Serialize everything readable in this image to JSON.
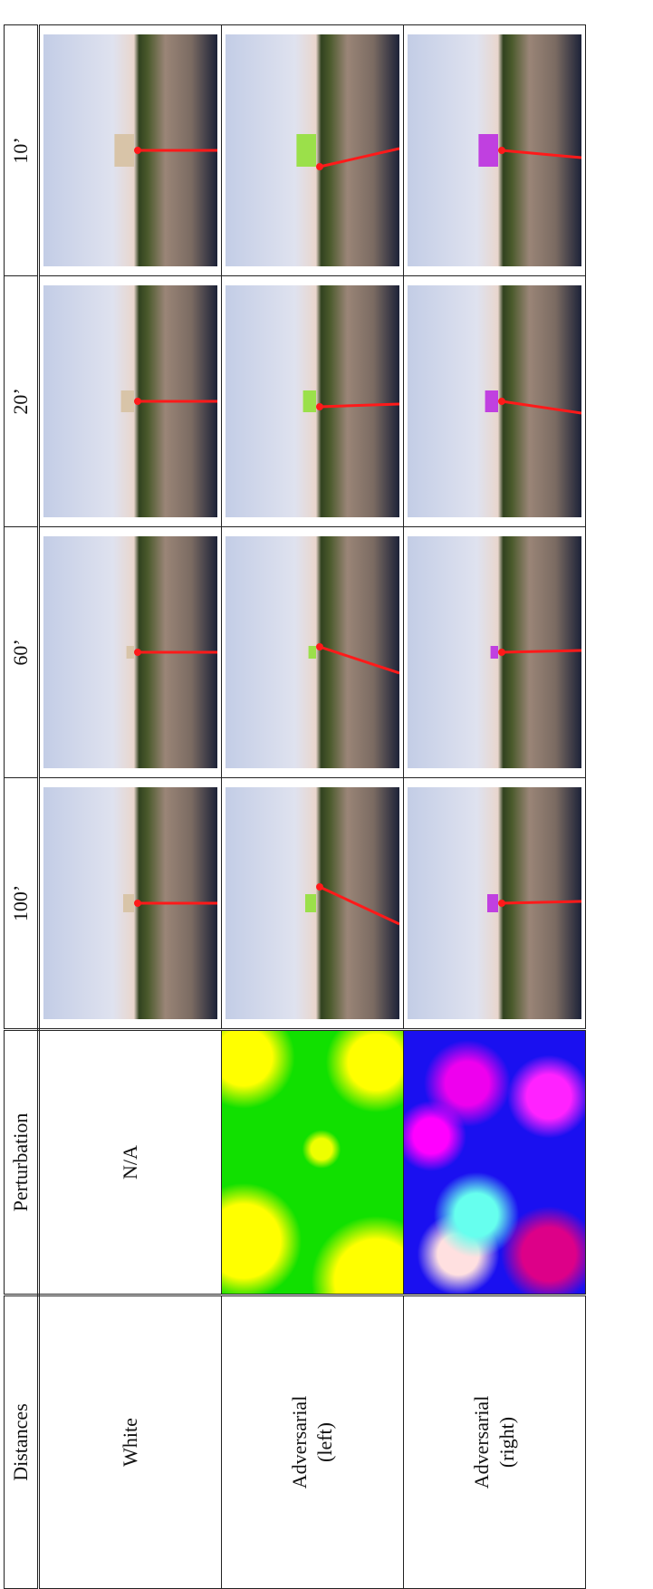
{
  "table": {
    "header": [
      "Distances",
      "Perturbation",
      "100’",
      "60’",
      "20’",
      "10’"
    ],
    "rows": [
      [
        "White",
        "N/A"
      ],
      [
        "Adversarial (left)"
      ],
      [
        "Adversarial (right)"
      ]
    ]
  }
}
